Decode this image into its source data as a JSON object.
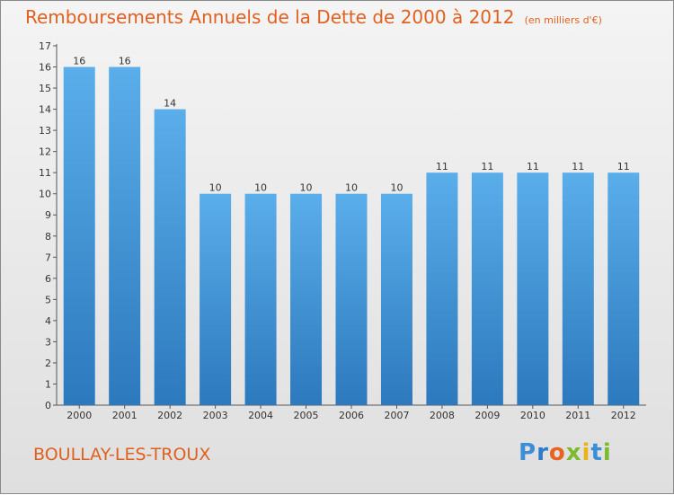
{
  "header": {
    "title": "Remboursements Annuels de la Dette de 2000 à 2012",
    "unit": "(en milliers d'€)"
  },
  "footer": {
    "commune": "BOULLAY-LES-TROUX",
    "logo_text": "Proxiti"
  },
  "chart_data": {
    "type": "bar",
    "title": "Remboursements Annuels de la Dette de 2000 à 2012",
    "subtitle": "(en milliers d'€)",
    "categories": [
      "2000",
      "2001",
      "2002",
      "2003",
      "2004",
      "2005",
      "2006",
      "2007",
      "2008",
      "2009",
      "2010",
      "2011",
      "2012"
    ],
    "values": [
      16,
      16,
      14,
      10,
      10,
      10,
      10,
      10,
      11,
      11,
      11,
      11,
      11
    ],
    "data_labels": [
      "16",
      "16",
      "14",
      "10",
      "10",
      "10",
      "10",
      "10",
      "11",
      "11",
      "11",
      "11",
      "11"
    ],
    "yticks": [
      "0",
      "1",
      "2",
      "3",
      "4",
      "5",
      "6",
      "7",
      "8",
      "9",
      "10",
      "11",
      "12",
      "13",
      "14",
      "15",
      "16",
      "17"
    ],
    "ylim": [
      0,
      17
    ],
    "xlabel": "",
    "ylabel": "",
    "grid": false,
    "bar_color": "#4a9fe0",
    "bar_color_dark": "#2a78c0"
  }
}
